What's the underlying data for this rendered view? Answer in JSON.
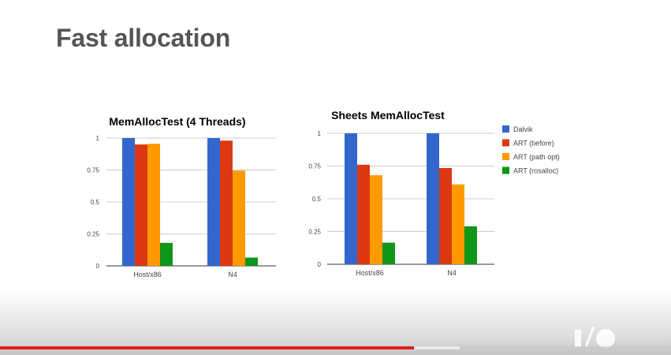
{
  "slide": {
    "title": "Fast allocation"
  },
  "chart_data": [
    {
      "type": "bar",
      "title": "MemAllocTest (4 Threads)",
      "categories": [
        "Host/x86",
        "N4"
      ],
      "ylim": [
        0,
        1
      ],
      "yticks": [
        "0",
        "0.25",
        "0.5",
        "0.75",
        "1"
      ],
      "grid": true,
      "legend": "none",
      "series": [
        {
          "name": "Dalvik",
          "color": "#3366cc",
          "values": [
            1.0,
            1.0
          ]
        },
        {
          "name": "ART (before)",
          "color": "#dc3912",
          "values": [
            0.95,
            0.98
          ]
        },
        {
          "name": "ART (path opt)",
          "color": "#ff9900",
          "values": [
            0.955,
            0.745
          ]
        },
        {
          "name": "ART (rosalloc)",
          "color": "#109618",
          "values": [
            0.18,
            0.065
          ]
        }
      ]
    },
    {
      "type": "bar",
      "title": "Sheets MemAllocTest",
      "categories": [
        "Host/x86",
        "N4"
      ],
      "ylim": [
        0,
        1
      ],
      "yticks": [
        "0",
        "0.25",
        "0.5",
        "0.75",
        "1"
      ],
      "grid": true,
      "legend": "right",
      "series": [
        {
          "name": "Dalvik",
          "color": "#3366cc",
          "values": [
            1.0,
            1.0
          ]
        },
        {
          "name": "ART (before)",
          "color": "#dc3912",
          "values": [
            0.76,
            0.735
          ]
        },
        {
          "name": "ART (path opt)",
          "color": "#ff9900",
          "values": [
            0.68,
            0.61
          ]
        },
        {
          "name": "ART (rosalloc)",
          "color": "#109618",
          "values": [
            0.165,
            0.29
          ]
        }
      ]
    }
  ],
  "player": {
    "progress": 0.617,
    "buffered": 0.685,
    "logo": "io-logo"
  }
}
